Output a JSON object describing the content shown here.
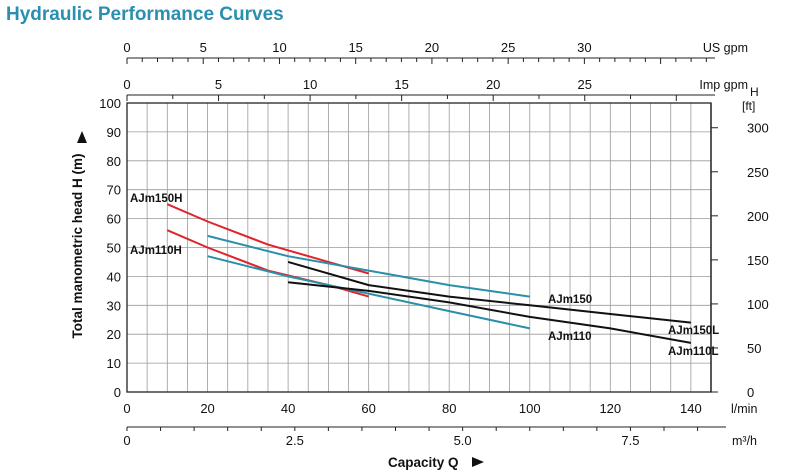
{
  "title": "Hydraulic Performance Curves",
  "chart_data": {
    "type": "line",
    "title": "Hydraulic Performance Curves",
    "xlabel": "Capacity Q",
    "ylabel": "Total manometric head H (m)",
    "x_unit": "l/min",
    "xlim": [
      0,
      145
    ],
    "ylim": [
      0,
      100
    ],
    "x_ticks": [
      0,
      20,
      40,
      60,
      80,
      100,
      120,
      140
    ],
    "y_ticks": [
      0,
      10,
      20,
      30,
      40,
      50,
      60,
      70,
      80,
      90,
      100
    ],
    "grid": true,
    "secondary_axes": {
      "right_label": "H [ft]",
      "right_ticks": [
        0,
        50,
        100,
        150,
        200,
        250,
        300
      ],
      "us_gpm_label": "US gpm",
      "us_gpm_ticks": [
        0,
        5,
        10,
        15,
        20,
        25,
        30
      ],
      "imp_gpm_label": "Imp gpm",
      "imp_gpm_ticks": [
        0,
        5,
        10,
        15,
        20,
        25
      ],
      "m3h_label": "m³/h",
      "m3h_ticks": [
        "0",
        "2.5",
        "5.0",
        "7.5"
      ]
    },
    "series": [
      {
        "name": "AJm150H",
        "color": "#e0242c",
        "x": [
          10,
          20,
          35,
          50,
          60
        ],
        "y": [
          65,
          59,
          51,
          45,
          41
        ]
      },
      {
        "name": "AJm110H",
        "color": "#e0242c",
        "x": [
          10,
          20,
          35,
          50,
          60
        ],
        "y": [
          56,
          50,
          42,
          37,
          33
        ]
      },
      {
        "name": "AJm150",
        "color": "#2a8fa8",
        "x": [
          20,
          40,
          60,
          80,
          100
        ],
        "y": [
          54,
          47,
          42,
          37,
          33
        ]
      },
      {
        "name": "AJm110",
        "color": "#2a8fa8",
        "x": [
          20,
          40,
          60,
          80,
          100
        ],
        "y": [
          47,
          40,
          34,
          28,
          22
        ]
      },
      {
        "name": "AJm150L",
        "color": "#111111",
        "x": [
          40,
          60,
          80,
          100,
          120,
          140
        ],
        "y": [
          45,
          37,
          33,
          30,
          27,
          24
        ]
      },
      {
        "name": "AJm110L",
        "color": "#111111",
        "x": [
          40,
          60,
          80,
          100,
          120,
          140
        ],
        "y": [
          38,
          35,
          31,
          26,
          22,
          17
        ]
      }
    ]
  }
}
